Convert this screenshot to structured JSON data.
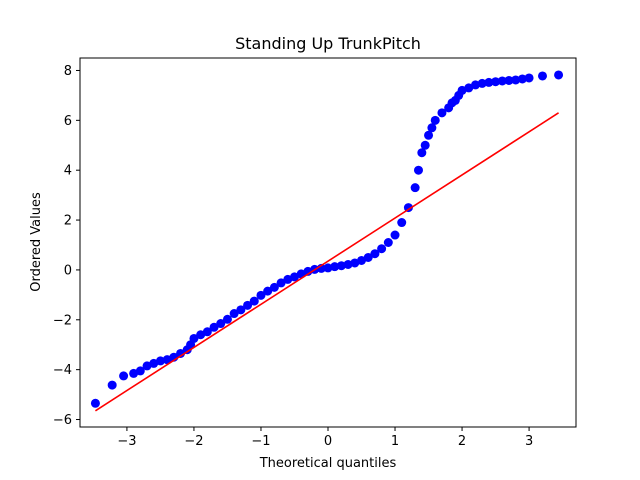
{
  "chart_data": {
    "type": "scatter",
    "title": "Standing Up TrunkPitch",
    "xlabel": "Theoretical quantiles",
    "ylabel": "Ordered Values",
    "xlim": [
      -3.7,
      3.7
    ],
    "ylim": [
      -6.3,
      8.5
    ],
    "xticks": [
      -3,
      -2,
      -1,
      0,
      1,
      2,
      3
    ],
    "xtick_labels": [
      "−3",
      "−2",
      "−1",
      "0",
      "1",
      "2",
      "3"
    ],
    "yticks": [
      -6,
      -4,
      -2,
      0,
      2,
      4,
      6,
      8
    ],
    "ytick_labels": [
      "−6",
      "−4",
      "−2",
      "0",
      "2",
      "4",
      "6",
      "8"
    ],
    "grid": false,
    "legend": "none",
    "series": [
      {
        "kind": "points",
        "color": "#0000ff",
        "x": [
          -3.47,
          -3.22,
          -3.05,
          -2.9,
          -2.8,
          -2.7,
          -2.6,
          -2.5,
          -2.4,
          -2.3,
          -2.2,
          -2.1,
          -2.05,
          -2.0,
          -1.9,
          -1.8,
          -1.7,
          -1.6,
          -1.5,
          -1.4,
          -1.3,
          -1.2,
          -1.1,
          -1.0,
          -0.9,
          -0.8,
          -0.7,
          -0.6,
          -0.5,
          -0.4,
          -0.3,
          -0.2,
          -0.1,
          0.0,
          0.1,
          0.2,
          0.3,
          0.4,
          0.5,
          0.6,
          0.7,
          0.8,
          0.9,
          1.0,
          1.1,
          1.2,
          1.3,
          1.35,
          1.4,
          1.45,
          1.5,
          1.55,
          1.6,
          1.7,
          1.8,
          1.85,
          1.9,
          1.95,
          2.0,
          2.1,
          2.2,
          2.3,
          2.4,
          2.5,
          2.6,
          2.7,
          2.8,
          2.9,
          3.0,
          3.2,
          3.44
        ],
        "y": [
          -5.35,
          -4.62,
          -4.25,
          -4.15,
          -4.05,
          -3.85,
          -3.75,
          -3.65,
          -3.6,
          -3.5,
          -3.35,
          -3.2,
          -3.0,
          -2.75,
          -2.6,
          -2.48,
          -2.3,
          -2.15,
          -1.98,
          -1.75,
          -1.6,
          -1.42,
          -1.25,
          -1.02,
          -0.85,
          -0.7,
          -0.52,
          -0.38,
          -0.28,
          -0.16,
          -0.06,
          0.02,
          0.06,
          0.08,
          0.13,
          0.17,
          0.22,
          0.28,
          0.38,
          0.5,
          0.65,
          0.85,
          1.1,
          1.4,
          1.9,
          2.5,
          3.3,
          4.0,
          4.7,
          5.0,
          5.4,
          5.7,
          6.0,
          6.3,
          6.5,
          6.7,
          6.8,
          7.0,
          7.2,
          7.3,
          7.42,
          7.48,
          7.52,
          7.55,
          7.58,
          7.6,
          7.62,
          7.66,
          7.7,
          7.78,
          7.82
        ]
      },
      {
        "kind": "line",
        "color": "#ff0000",
        "x": [
          -3.47,
          3.44
        ],
        "y": [
          -5.65,
          6.3
        ]
      }
    ]
  }
}
